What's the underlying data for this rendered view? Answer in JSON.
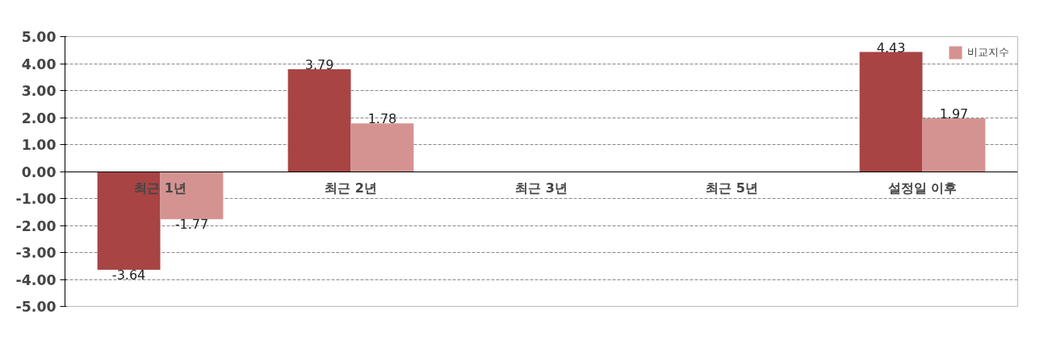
{
  "chart_data": {
    "type": "bar",
    "categories": [
      "최근 1년",
      "최근 2년",
      "최근 3년",
      "최근 5년",
      "설정일 이후"
    ],
    "series": [
      {
        "color": "#a84444",
        "values": [
          -3.64,
          3.79,
          null,
          null,
          4.43
        ]
      },
      {
        "name": "비교지수",
        "color": "#d49391",
        "values": [
          -1.77,
          1.78,
          null,
          null,
          1.97
        ]
      }
    ],
    "ylim": [
      -5,
      5
    ],
    "yticks": [
      {
        "value": -5,
        "label": "-5.00"
      },
      {
        "value": -4,
        "label": "-4.00"
      },
      {
        "value": -3,
        "label": "-3.00"
      },
      {
        "value": -2,
        "label": "-2.00"
      },
      {
        "value": -1,
        "label": "-1.00"
      },
      {
        "value": 0,
        "label": "0.00"
      },
      {
        "value": 1,
        "label": "1.00"
      },
      {
        "value": 2,
        "label": "2.00"
      },
      {
        "value": 3,
        "label": "3.00"
      },
      {
        "value": 4,
        "label": "4.00"
      },
      {
        "value": 5,
        "label": "5.00"
      }
    ],
    "grid": "y",
    "legend": "top right",
    "data_labels": true
  }
}
